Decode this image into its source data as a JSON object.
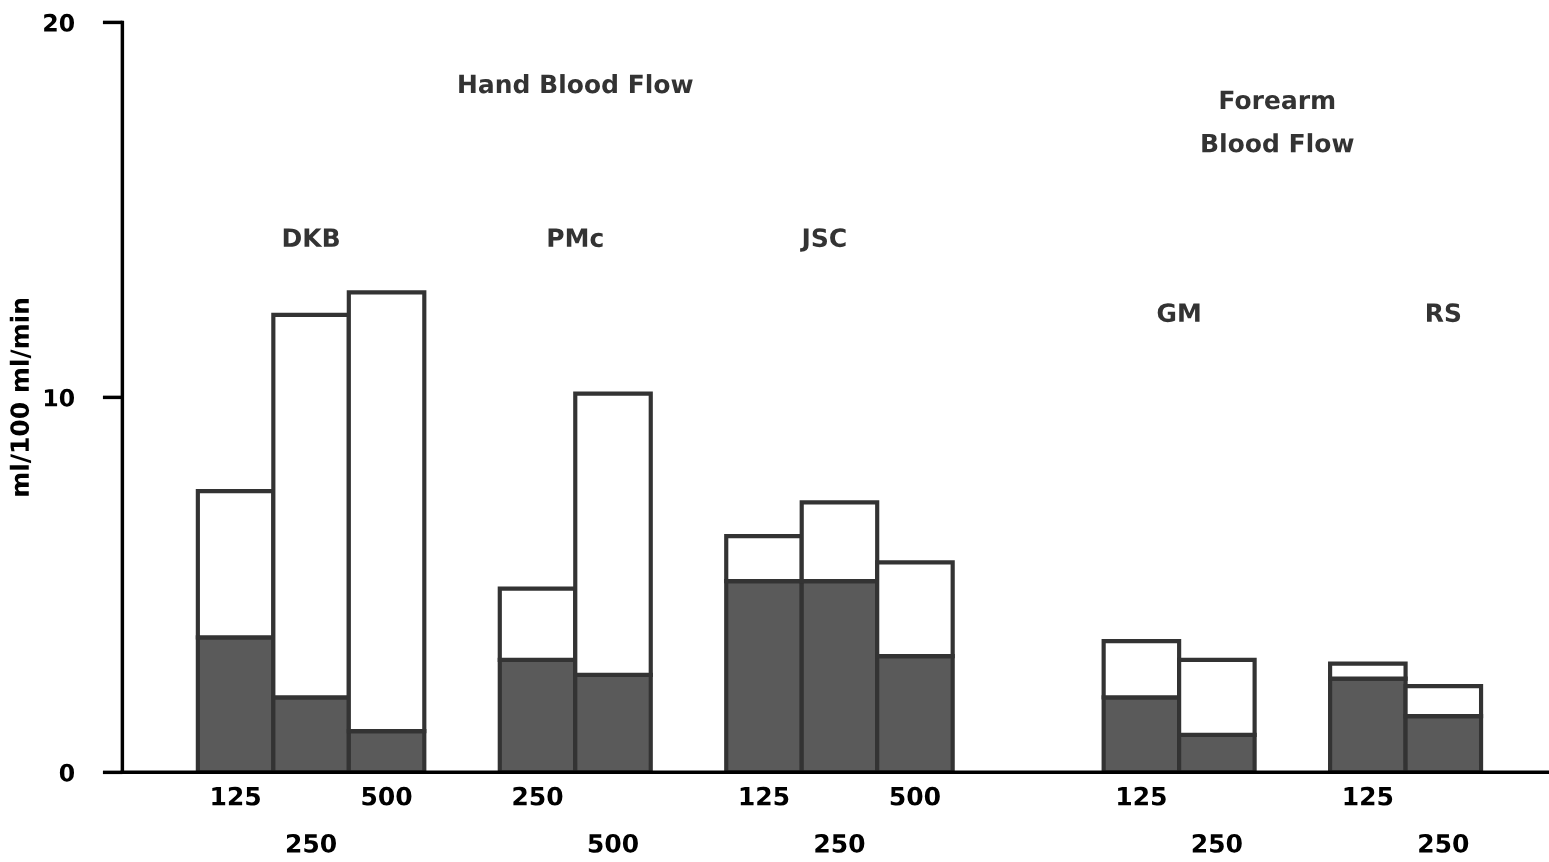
{
  "chart_data": {
    "type": "bar",
    "stacked": true,
    "ylabel": "ml/100 ml/min",
    "ylim": [
      0,
      20
    ],
    "yticks": [
      0,
      10,
      20
    ],
    "grid": false,
    "legend": false,
    "categories": [
      "125",
      "250",
      "500",
      null,
      "250",
      "500",
      null,
      "125",
      "250",
      "500",
      null,
      null,
      "125",
      "250",
      null,
      "125",
      "250"
    ],
    "series": [
      {
        "color": "#5a5a5a",
        "values": [
          3.6,
          2.0,
          1.1,
          null,
          3.0,
          2.6,
          null,
          5.1,
          5.1,
          3.1,
          null,
          null,
          2.0,
          1.0,
          null,
          2.5,
          1.5
        ]
      },
      {
        "color": "#ffffff",
        "values": [
          3.9,
          10.2,
          11.7,
          null,
          1.9,
          7.5,
          null,
          1.2,
          2.1,
          2.5,
          null,
          null,
          1.5,
          2.0,
          null,
          0.4,
          0.8
        ]
      }
    ],
    "annotations": [
      "Hand Blood Flow",
      "Forearm\nBlood Flow",
      "DKB",
      "PMc",
      "JSC",
      "GM",
      "RS"
    ]
  }
}
